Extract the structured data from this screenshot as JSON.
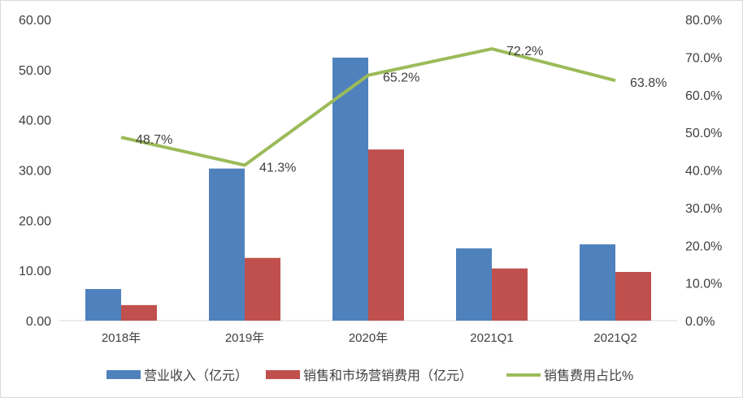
{
  "chart_data": {
    "type": "bar+line",
    "categories": [
      "2018年",
      "2019年",
      "2020年",
      "2021Q1",
      "2021Q2"
    ],
    "series": [
      {
        "name": "营业收入（亿元）",
        "type": "bar",
        "axis": "left",
        "color": "#4f81bd",
        "values": [
          6.3,
          30.3,
          52.4,
          14.4,
          15.2
        ]
      },
      {
        "name": "销售和市场营销费用（亿元）",
        "type": "bar",
        "axis": "left",
        "color": "#c0504d",
        "values": [
          3.1,
          12.5,
          34.1,
          10.4,
          9.7
        ]
      },
      {
        "name": "销售费用占比%",
        "type": "line",
        "axis": "right",
        "color": "#9bbb59",
        "values": [
          48.7,
          41.3,
          65.2,
          72.2,
          63.8
        ],
        "labels": [
          "48.7%",
          "41.3%",
          "65.2%",
          "72.2%",
          "63.8%"
        ]
      }
    ],
    "left_axis": {
      "ylim": [
        0,
        60
      ],
      "ticks": [
        "0.00",
        "10.00",
        "20.00",
        "30.00",
        "40.00",
        "50.00",
        "60.00"
      ]
    },
    "right_axis": {
      "ylim": [
        0,
        80
      ],
      "ticks": [
        "0.0%",
        "10.0%",
        "20.0%",
        "30.0%",
        "40.0%",
        "50.0%",
        "60.0%",
        "70.0%",
        "80.0%"
      ]
    },
    "grid": false,
    "legend": "bottom"
  }
}
